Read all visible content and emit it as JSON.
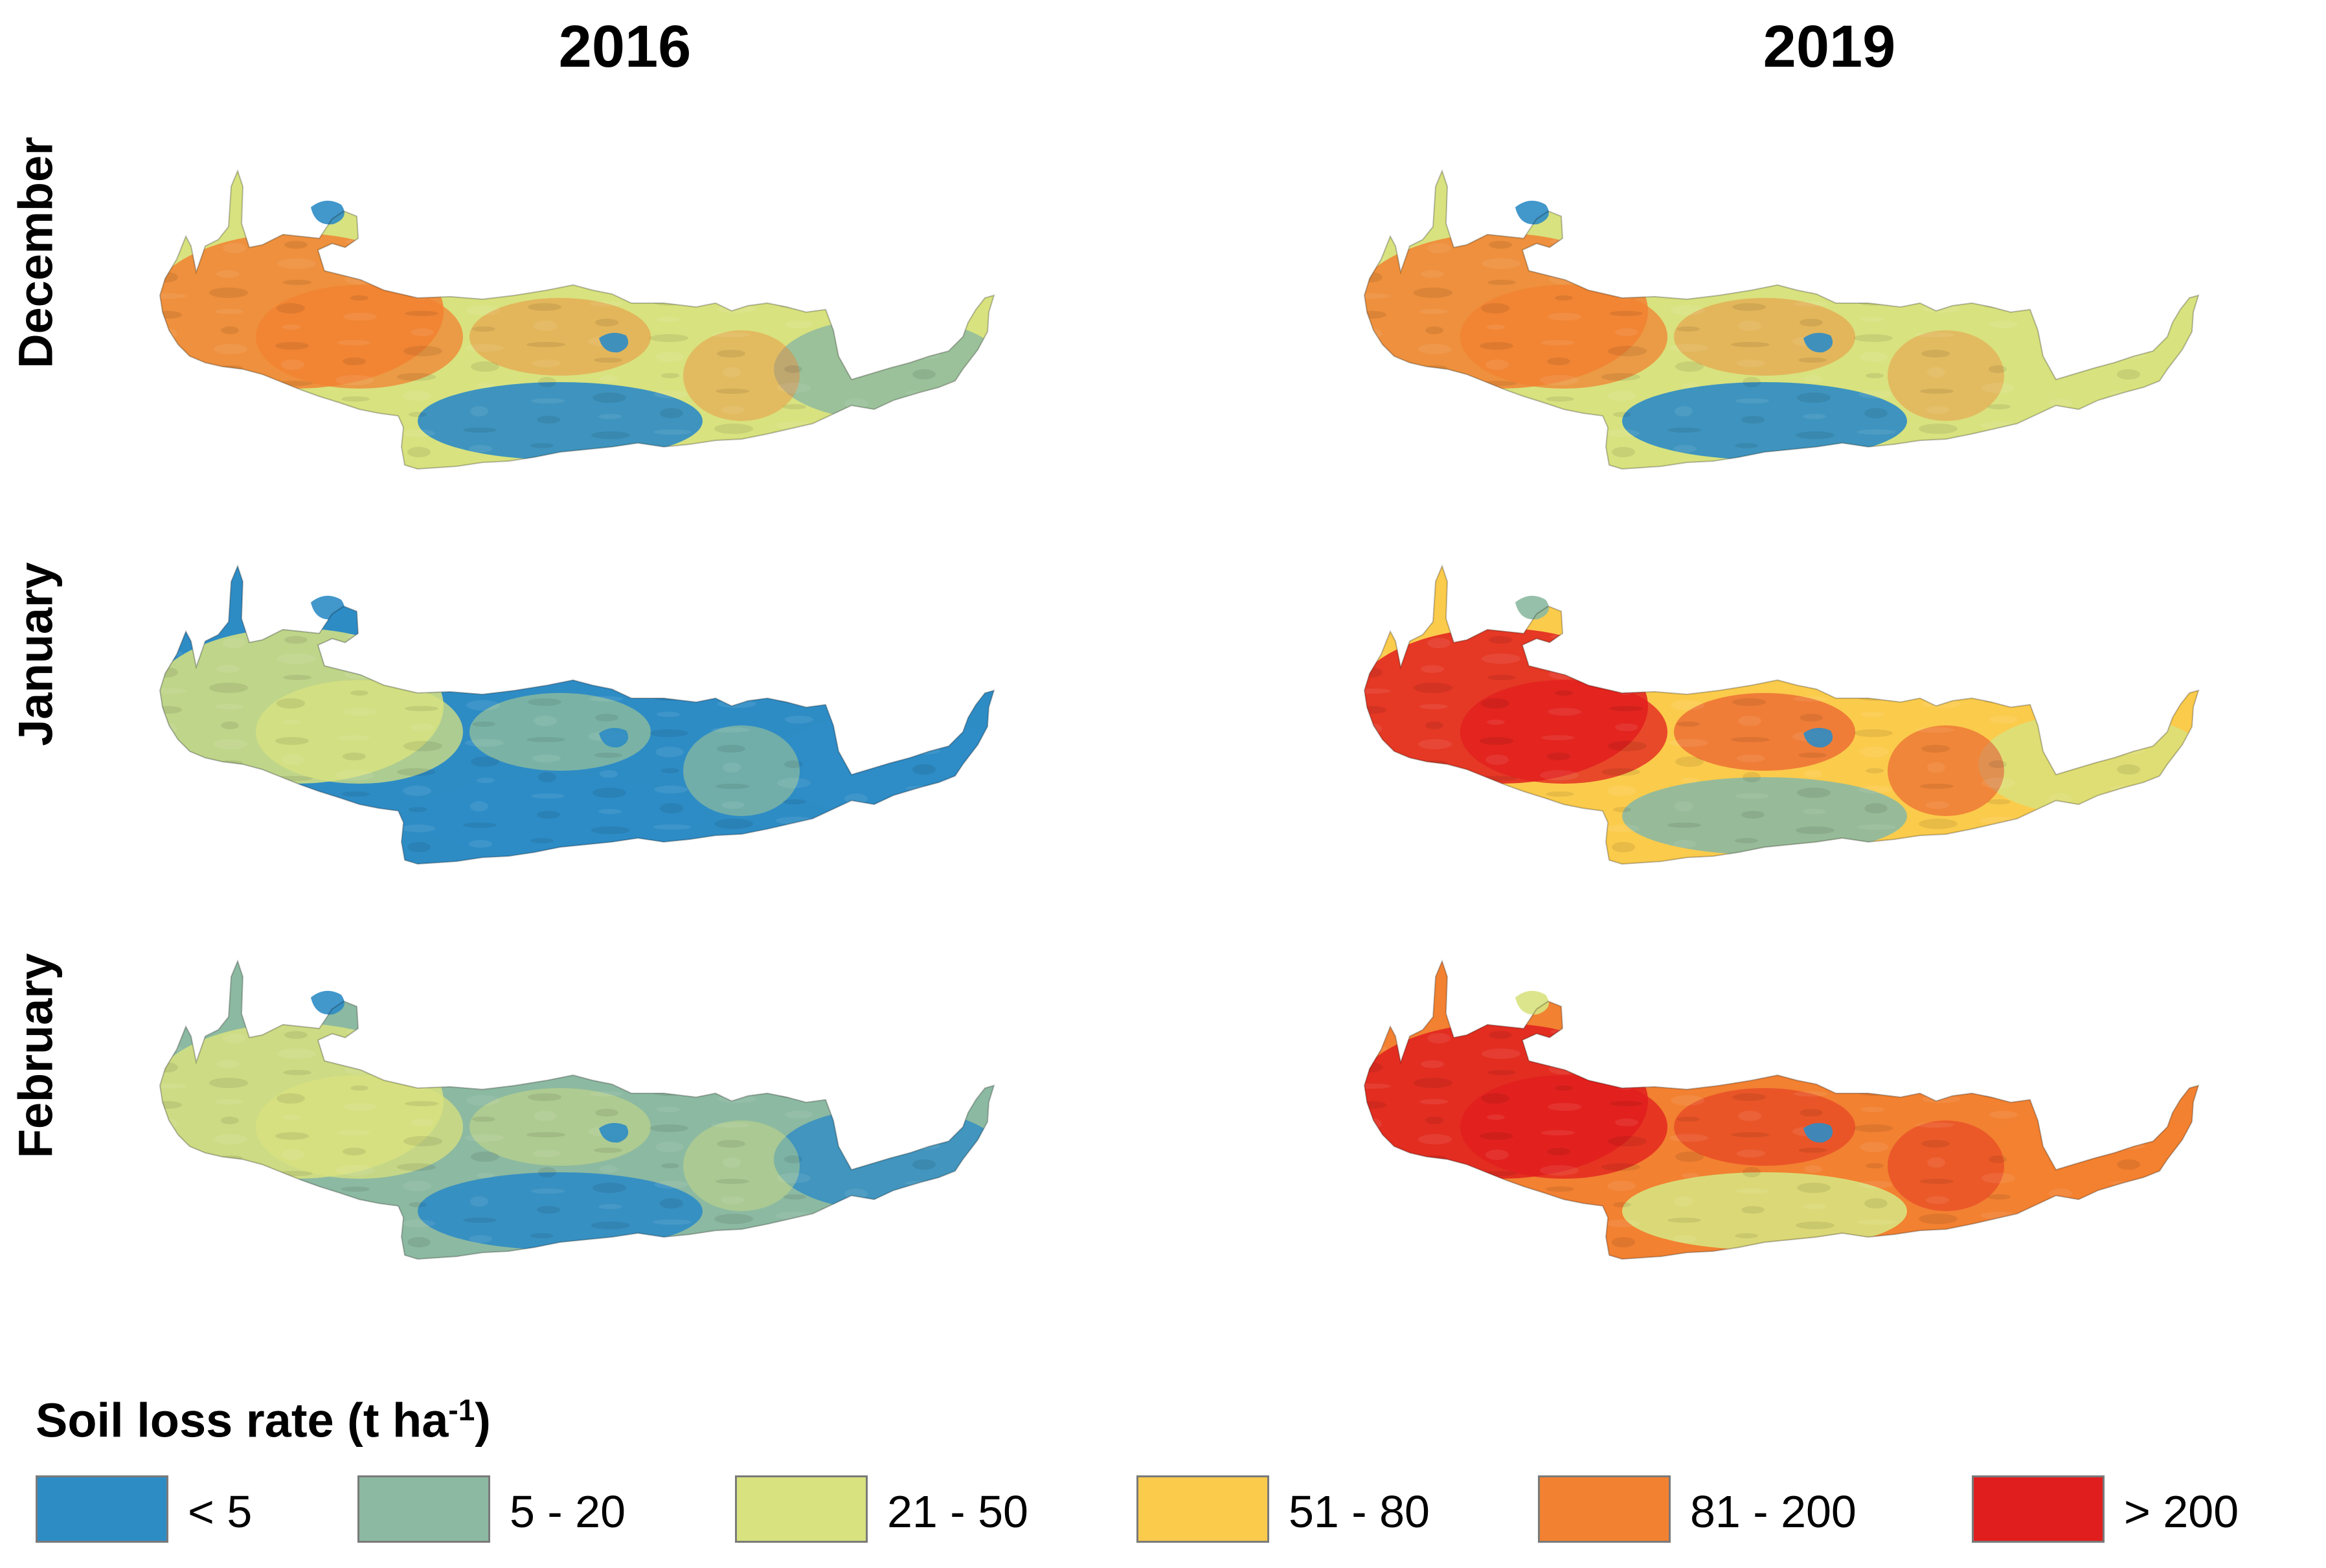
{
  "columns": [
    {
      "year": "2016"
    },
    {
      "year": "2019"
    }
  ],
  "rows": [
    {
      "month": "December"
    },
    {
      "month": "January"
    },
    {
      "month": "February"
    }
  ],
  "maps": [
    {
      "year": "2016",
      "month": "December",
      "dominant_class": "21 - 50",
      "west_class": "81 - 200",
      "east_class": "5 - 20",
      "south_plain_class": "< 5"
    },
    {
      "year": "2019",
      "month": "December",
      "dominant_class": "21 - 50",
      "west_class": "81 - 200",
      "east_class": "21 - 50",
      "south_plain_class": "< 5"
    },
    {
      "year": "2016",
      "month": "January",
      "dominant_class": "< 5",
      "west_class": "21 - 50",
      "east_class": "< 5",
      "south_plain_class": "< 5"
    },
    {
      "year": "2019",
      "month": "January",
      "dominant_class": "51 - 80",
      "west_class": "> 200",
      "east_class": "21 - 50",
      "south_plain_class": "5 - 20"
    },
    {
      "year": "2016",
      "month": "February",
      "dominant_class": "5 - 20",
      "west_class": "21 - 50",
      "east_class": "< 5",
      "south_plain_class": "< 5"
    },
    {
      "year": "2019",
      "month": "February",
      "dominant_class": "81 - 200",
      "west_class": "> 200",
      "east_class": "81 - 200",
      "south_plain_class": "21 - 50"
    }
  ],
  "legend": {
    "title_main": "Soil loss rate (t ha",
    "title_sup": "-1",
    "title_end": ")",
    "classes": [
      {
        "label": "< 5",
        "color": "#2E8CC5"
      },
      {
        "label": "5 - 20",
        "color": "#8CB9A1"
      },
      {
        "label": "21 - 50",
        "color": "#D8E27F"
      },
      {
        "label": "51 - 80",
        "color": "#FBCB4C"
      },
      {
        "label": "81 - 200",
        "color": "#F28131"
      },
      {
        "label": "> 200",
        "color": "#E11E1E"
      }
    ]
  }
}
